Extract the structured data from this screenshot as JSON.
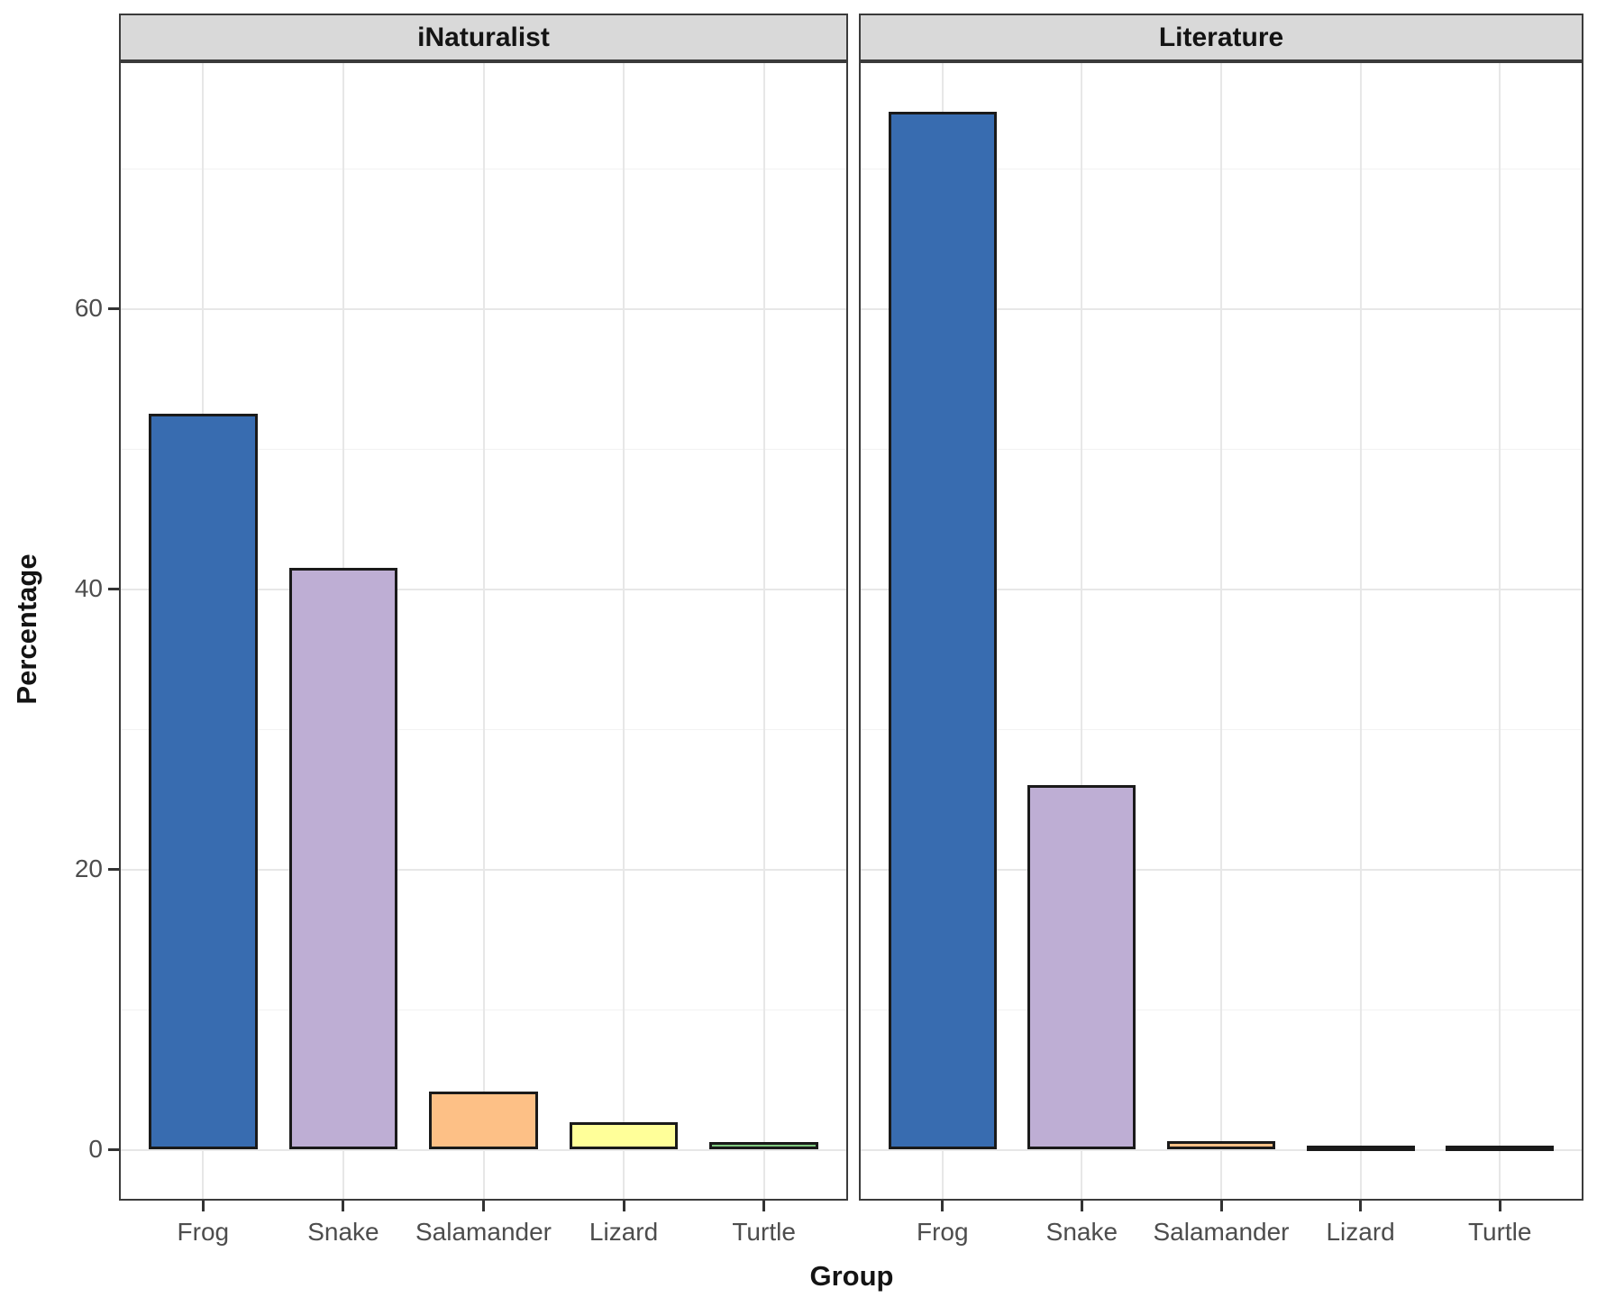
{
  "chart_data": {
    "type": "bar",
    "faceted": true,
    "facet_titles": [
      "iNaturalist",
      "Literature"
    ],
    "categories": [
      "Frog",
      "Snake",
      "Salamander",
      "Lizard",
      "Turtle"
    ],
    "series": [
      {
        "name": "iNaturalist",
        "values": [
          52.5,
          41.5,
          4.1,
          1.9,
          0.5
        ]
      },
      {
        "name": "Literature",
        "values": [
          74.0,
          26.0,
          0.6,
          0.2,
          0.2
        ]
      }
    ],
    "bar_colors": [
      "#386CB0",
      "#BEAED4",
      "#FDC086",
      "#FFFF99",
      "#7FC97F"
    ],
    "bar_outline_color": "#1A1A1A",
    "title": "",
    "xlabel": "Group",
    "ylabel": "Percentage",
    "ylim": [
      0,
      77.5
    ],
    "yticks": [
      0,
      20,
      40,
      60
    ],
    "minor_gridlines": [
      10,
      30,
      50,
      70
    ],
    "grid": true,
    "legend": false,
    "panel_background": "#FFFFFF",
    "strip_background": "#D9D9D9",
    "axis_text_color": "#4D4D4D",
    "gridline_color": "#E7E7E7"
  }
}
